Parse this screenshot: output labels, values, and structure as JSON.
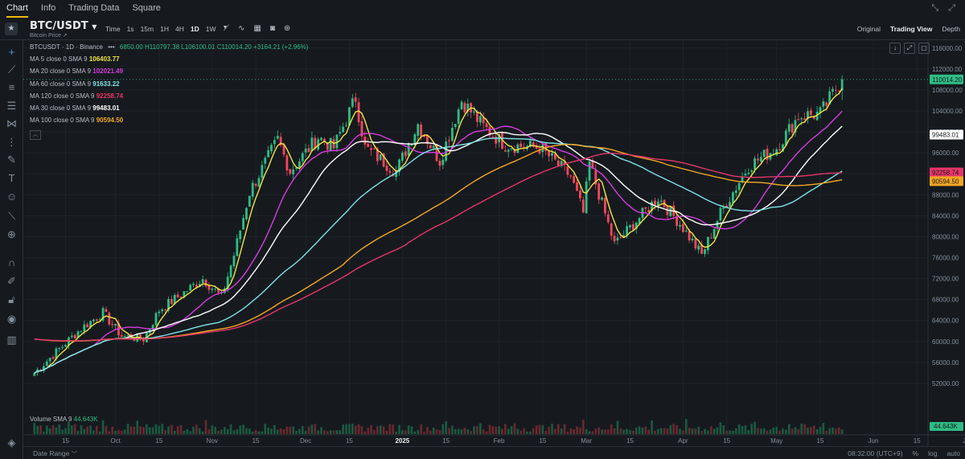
{
  "nav": {
    "tabs": [
      "Chart",
      "Info",
      "Trading Data",
      "Square"
    ],
    "active": 0
  },
  "toolbar": {
    "symbol": "BTC/USDT",
    "symbol_sub": "Bitcoin Price",
    "intervals": [
      "Time",
      "1s",
      "15m",
      "1H",
      "4H",
      "1D",
      "1W"
    ],
    "selected_interval": "1D",
    "views": [
      "Original",
      "Trading View",
      "Depth"
    ],
    "selected_view": "Trading View"
  },
  "legend": {
    "title": "BTCUSDT · 1D · Binance",
    "ohlc": "6850.00 H110797.38 L106100.01 C110014.20 +3164.21 (+2.96%)",
    "ma_rows": [
      {
        "label": "MA 5 close 0 SMA 9",
        "value": "106403.77",
        "color": "#f0e442"
      },
      {
        "label": "MA 20 close 0 SMA 9",
        "value": "102021.49",
        "color": "#d63ce0"
      },
      {
        "label": "MA 60 close 0 SMA 9",
        "value": "91633.22",
        "color": "#7de3e8"
      },
      {
        "label": "MA 120 close 0 SMA 9",
        "value": "92258.74",
        "color": "#e8356a"
      },
      {
        "label": "MA 30 close 0 SMA 9",
        "value": "99483.01",
        "color": "#ffffff"
      },
      {
        "label": "MA 100 close 0 SMA 9",
        "value": "90594.50",
        "color": "#f5a623"
      }
    ]
  },
  "volume": {
    "label": "Volume SMA 9",
    "value": "44.643K"
  },
  "bottom": {
    "date_range": "Date Range",
    "time": "08:32:00 (UTC+9)",
    "pct": "%",
    "log": "log",
    "auto": "auto"
  },
  "colors": {
    "up": "#2ebd85",
    "down": "#f6465d",
    "bg": "#161a1e",
    "grid": "#1f242b"
  },
  "chart_data": {
    "type": "candlestick",
    "title": "BTCUSDT · 1D · Binance",
    "y_ticks": [
      52000,
      56000,
      60000,
      64000,
      68000,
      72000,
      76000,
      80000,
      84000,
      88000,
      92000,
      96000,
      100000,
      104000,
      108000,
      112000,
      116000
    ],
    "ylim": [
      50000,
      117500
    ],
    "x_ticks": [
      "15",
      "Oct",
      "15",
      "Nov",
      "15",
      "Dec",
      "15",
      "2025",
      "15",
      "Feb",
      "15",
      "Mar",
      "15",
      "Apr",
      "15",
      "May",
      "15",
      "Jun",
      "15",
      "Jul"
    ],
    "close_path_key": [
      [
        "2024-09-05",
        54000
      ],
      [
        "2024-09-12",
        58000
      ],
      [
        "2024-09-20",
        62500
      ],
      [
        "2024-09-27",
        65500
      ],
      [
        "2024-10-03",
        61000
      ],
      [
        "2024-10-10",
        60500
      ],
      [
        "2024-10-15",
        66000
      ],
      [
        "2024-10-21",
        68500
      ],
      [
        "2024-10-29",
        72000
      ],
      [
        "2024-11-04",
        68500
      ],
      [
        "2024-11-08",
        76500
      ],
      [
        "2024-11-13",
        88500
      ],
      [
        "2024-11-22",
        98500
      ],
      [
        "2024-11-26",
        92500
      ],
      [
        "2024-12-05",
        99000
      ],
      [
        "2024-12-10",
        97000
      ],
      [
        "2024-12-17",
        106500
      ],
      [
        "2024-12-20",
        97000
      ],
      [
        "2024-12-30",
        92500
      ],
      [
        "2025-01-06",
        101500
      ],
      [
        "2025-01-13",
        94500
      ],
      [
        "2025-01-20",
        106000
      ],
      [
        "2025-01-27",
        101000
      ],
      [
        "2025-02-03",
        97500
      ],
      [
        "2025-02-14",
        97000
      ],
      [
        "2025-02-24",
        91500
      ],
      [
        "2025-02-28",
        84500
      ],
      [
        "2025-03-02",
        94000
      ],
      [
        "2025-03-10",
        78500
      ],
      [
        "2025-03-24",
        87500
      ],
      [
        "2025-03-31",
        82500
      ],
      [
        "2025-04-07",
        76500
      ],
      [
        "2025-04-13",
        84500
      ],
      [
        "2025-04-22",
        93500
      ],
      [
        "2025-05-01",
        97000
      ],
      [
        "2025-05-08",
        103000
      ],
      [
        "2025-05-15",
        103500
      ],
      [
        "2025-05-22",
        110014.2
      ]
    ],
    "last_close": 110014.2,
    "price_labels": [
      {
        "value": 110014.2,
        "text": "110014.20",
        "color": "#2ebd85"
      },
      {
        "value": 99483.01,
        "text": "99483.01",
        "color": "#ffffff"
      },
      {
        "value": 92258.74,
        "text": "92258.74",
        "color": "#e8356a"
      },
      {
        "value": 90594.5,
        "text": "90594.50",
        "color": "#f5a623"
      }
    ],
    "series": [
      {
        "name": "MA 5",
        "color": "#f0e442"
      },
      {
        "name": "MA 20",
        "color": "#d63ce0"
      },
      {
        "name": "MA 30",
        "color": "#ffffff"
      },
      {
        "name": "MA 60",
        "color": "#7de3e8"
      },
      {
        "name": "MA 100",
        "color": "#f5a623"
      },
      {
        "name": "MA 120",
        "color": "#e8356a"
      }
    ],
    "volume_value": "44.643K",
    "grid": true
  }
}
